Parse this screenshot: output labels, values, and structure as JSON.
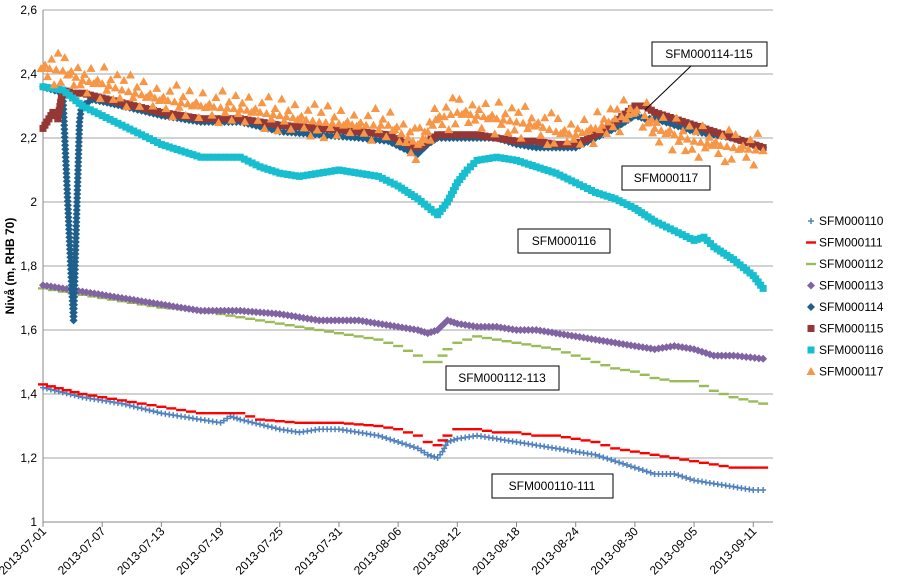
{
  "chart_data": {
    "type": "scatter",
    "title": "",
    "xlabel": "",
    "ylabel": "Nivå (m, RHB 70)",
    "xlim": [
      "2013-07-01",
      "2013-09-13"
    ],
    "ylim": [
      1,
      2.6
    ],
    "x_ticks": [
      "2013-07-01",
      "2013-07-07",
      "2013-07-13",
      "2013-07-19",
      "2013-07-25",
      "2013-07-31",
      "2013-08-06",
      "2013-08-12",
      "2013-08-18",
      "2013-08-24",
      "2013-08-30",
      "2013-09-05",
      "2013-09-11"
    ],
    "y_ticks": [
      "1",
      "1,2",
      "1,4",
      "1,6",
      "1,8",
      "2",
      "2,2",
      "2,4",
      "2,6"
    ],
    "grid": "horizontal",
    "legend_position": "right",
    "series": [
      {
        "name": "SFM000110",
        "color": "#4f81bd",
        "marker": "plus",
        "points": [
          [
            0,
            1.42
          ],
          [
            4,
            1.39
          ],
          [
            8,
            1.37
          ],
          [
            12,
            1.34
          ],
          [
            16,
            1.32
          ],
          [
            18,
            1.31
          ],
          [
            19,
            1.33
          ],
          [
            20,
            1.32
          ],
          [
            24,
            1.29
          ],
          [
            26,
            1.28
          ],
          [
            28,
            1.29
          ],
          [
            30,
            1.29
          ],
          [
            32,
            1.28
          ],
          [
            34,
            1.27
          ],
          [
            36,
            1.25
          ],
          [
            38,
            1.23
          ],
          [
            39,
            1.21
          ],
          [
            40,
            1.2
          ],
          [
            40.5,
            1.22
          ],
          [
            41,
            1.25
          ],
          [
            42,
            1.26
          ],
          [
            44,
            1.27
          ],
          [
            46,
            1.26
          ],
          [
            48,
            1.25
          ],
          [
            50,
            1.24
          ],
          [
            52,
            1.23
          ],
          [
            54,
            1.22
          ],
          [
            56,
            1.21
          ],
          [
            58,
            1.19
          ],
          [
            60,
            1.17
          ],
          [
            62,
            1.15
          ],
          [
            64,
            1.15
          ],
          [
            66,
            1.13
          ],
          [
            68,
            1.12
          ],
          [
            70,
            1.11
          ],
          [
            72,
            1.1
          ],
          [
            73,
            1.1
          ]
        ]
      },
      {
        "name": "SFM000111",
        "color": "#ff0000",
        "marker": "dash",
        "points": [
          [
            0,
            1.43
          ],
          [
            4,
            1.4
          ],
          [
            8,
            1.38
          ],
          [
            12,
            1.36
          ],
          [
            16,
            1.34
          ],
          [
            20,
            1.34
          ],
          [
            22,
            1.32
          ],
          [
            26,
            1.31
          ],
          [
            30,
            1.31
          ],
          [
            34,
            1.3
          ],
          [
            36,
            1.29
          ],
          [
            38,
            1.27
          ],
          [
            39,
            1.25
          ],
          [
            40,
            1.24
          ],
          [
            41,
            1.27
          ],
          [
            42,
            1.29
          ],
          [
            44,
            1.29
          ],
          [
            46,
            1.28
          ],
          [
            48,
            1.28
          ],
          [
            50,
            1.27
          ],
          [
            52,
            1.27
          ],
          [
            54,
            1.26
          ],
          [
            56,
            1.25
          ],
          [
            58,
            1.23
          ],
          [
            60,
            1.22
          ],
          [
            62,
            1.21
          ],
          [
            64,
            1.2
          ],
          [
            66,
            1.19
          ],
          [
            68,
            1.18
          ],
          [
            70,
            1.17
          ],
          [
            73,
            1.17
          ]
        ]
      },
      {
        "name": "SFM000112",
        "color": "#9bbb59",
        "marker": "dash",
        "points": [
          [
            0,
            1.73
          ],
          [
            4,
            1.71
          ],
          [
            8,
            1.69
          ],
          [
            12,
            1.67
          ],
          [
            16,
            1.66
          ],
          [
            20,
            1.64
          ],
          [
            24,
            1.62
          ],
          [
            28,
            1.6
          ],
          [
            32,
            1.58
          ],
          [
            34,
            1.57
          ],
          [
            36,
            1.55
          ],
          [
            38,
            1.52
          ],
          [
            39,
            1.5
          ],
          [
            40,
            1.5
          ],
          [
            41,
            1.54
          ],
          [
            42,
            1.56
          ],
          [
            44,
            1.58
          ],
          [
            46,
            1.57
          ],
          [
            48,
            1.56
          ],
          [
            50,
            1.55
          ],
          [
            52,
            1.54
          ],
          [
            54,
            1.52
          ],
          [
            56,
            1.5
          ],
          [
            58,
            1.48
          ],
          [
            60,
            1.47
          ],
          [
            62,
            1.45
          ],
          [
            64,
            1.44
          ],
          [
            66,
            1.44
          ],
          [
            68,
            1.41
          ],
          [
            70,
            1.39
          ],
          [
            73,
            1.37
          ]
        ]
      },
      {
        "name": "SFM000113",
        "color": "#8064a2",
        "marker": "diamond",
        "points": [
          [
            0,
            1.74
          ],
          [
            4,
            1.72
          ],
          [
            8,
            1.7
          ],
          [
            12,
            1.68
          ],
          [
            16,
            1.66
          ],
          [
            20,
            1.66
          ],
          [
            24,
            1.65
          ],
          [
            28,
            1.63
          ],
          [
            32,
            1.63
          ],
          [
            34,
            1.62
          ],
          [
            36,
            1.61
          ],
          [
            38,
            1.6
          ],
          [
            39,
            1.59
          ],
          [
            40,
            1.6
          ],
          [
            41,
            1.63
          ],
          [
            42,
            1.62
          ],
          [
            44,
            1.61
          ],
          [
            46,
            1.61
          ],
          [
            48,
            1.6
          ],
          [
            50,
            1.6
          ],
          [
            52,
            1.59
          ],
          [
            54,
            1.58
          ],
          [
            56,
            1.57
          ],
          [
            58,
            1.56
          ],
          [
            60,
            1.55
          ],
          [
            62,
            1.54
          ],
          [
            64,
            1.55
          ],
          [
            66,
            1.54
          ],
          [
            68,
            1.52
          ],
          [
            70,
            1.52
          ],
          [
            73,
            1.51
          ]
        ]
      },
      {
        "name": "SFM000114",
        "color": "#1f5f8b",
        "marker": "diamond",
        "points": [
          [
            0,
            2.36
          ],
          [
            2,
            2.34
          ],
          [
            2.9,
            1.74
          ],
          [
            3.1,
            1.63
          ],
          [
            3.3,
            1.85
          ],
          [
            3.5,
            2.05
          ],
          [
            3.7,
            2.25
          ],
          [
            3.9,
            2.3
          ],
          [
            5,
            2.32
          ],
          [
            8,
            2.3
          ],
          [
            12,
            2.27
          ],
          [
            16,
            2.25
          ],
          [
            20,
            2.25
          ],
          [
            24,
            2.22
          ],
          [
            28,
            2.21
          ],
          [
            32,
            2.2
          ],
          [
            35,
            2.19
          ],
          [
            37,
            2.16
          ],
          [
            38,
            2.15
          ],
          [
            39,
            2.18
          ],
          [
            40,
            2.2
          ],
          [
            42,
            2.2
          ],
          [
            44,
            2.2
          ],
          [
            46,
            2.2
          ],
          [
            48,
            2.18
          ],
          [
            50,
            2.17
          ],
          [
            52,
            2.17
          ],
          [
            54,
            2.17
          ],
          [
            56,
            2.2
          ],
          [
            58,
            2.23
          ],
          [
            60,
            2.27
          ],
          [
            61,
            2.26
          ],
          [
            62,
            2.26
          ],
          [
            64,
            2.24
          ],
          [
            66,
            2.22
          ],
          [
            68,
            2.21
          ],
          [
            70,
            2.2
          ],
          [
            73,
            2.17
          ]
        ]
      },
      {
        "name": "SFM000115",
        "color": "#953735",
        "marker": "square",
        "points": [
          [
            0,
            2.23
          ],
          [
            1,
            2.28
          ],
          [
            1.5,
            2.26
          ],
          [
            2,
            2.35
          ],
          [
            3,
            2.34
          ],
          [
            4,
            2.34
          ],
          [
            8,
            2.31
          ],
          [
            12,
            2.28
          ],
          [
            16,
            2.26
          ],
          [
            20,
            2.26
          ],
          [
            24,
            2.24
          ],
          [
            28,
            2.23
          ],
          [
            32,
            2.22
          ],
          [
            35,
            2.21
          ],
          [
            37,
            2.18
          ],
          [
            38,
            2.17
          ],
          [
            39,
            2.19
          ],
          [
            40,
            2.21
          ],
          [
            42,
            2.21
          ],
          [
            44,
            2.21
          ],
          [
            46,
            2.2
          ],
          [
            48,
            2.19
          ],
          [
            50,
            2.19
          ],
          [
            52,
            2.18
          ],
          [
            54,
            2.18
          ],
          [
            56,
            2.21
          ],
          [
            58,
            2.25
          ],
          [
            60,
            2.3
          ],
          [
            61,
            2.3
          ],
          [
            62,
            2.28
          ],
          [
            64,
            2.26
          ],
          [
            66,
            2.24
          ],
          [
            68,
            2.22
          ],
          [
            70,
            2.2
          ],
          [
            73,
            2.17
          ]
        ]
      },
      {
        "name": "SFM000116",
        "color": "#17becf",
        "marker": "square",
        "points": [
          [
            0,
            2.36
          ],
          [
            2,
            2.35
          ],
          [
            4,
            2.3
          ],
          [
            6,
            2.27
          ],
          [
            8,
            2.24
          ],
          [
            10,
            2.21
          ],
          [
            12,
            2.18
          ],
          [
            14,
            2.16
          ],
          [
            16,
            2.14
          ],
          [
            18,
            2.14
          ],
          [
            20,
            2.14
          ],
          [
            22,
            2.11
          ],
          [
            24,
            2.09
          ],
          [
            26,
            2.08
          ],
          [
            28,
            2.09
          ],
          [
            30,
            2.1
          ],
          [
            32,
            2.09
          ],
          [
            34,
            2.08
          ],
          [
            36,
            2.05
          ],
          [
            38,
            2.01
          ],
          [
            40,
            1.96
          ],
          [
            41,
            2.0
          ],
          [
            42,
            2.06
          ],
          [
            43,
            2.1
          ],
          [
            44,
            2.13
          ],
          [
            46,
            2.14
          ],
          [
            48,
            2.13
          ],
          [
            50,
            2.11
          ],
          [
            52,
            2.09
          ],
          [
            54,
            2.06
          ],
          [
            56,
            2.03
          ],
          [
            58,
            2.01
          ],
          [
            60,
            1.98
          ],
          [
            62,
            1.94
          ],
          [
            64,
            1.91
          ],
          [
            66,
            1.88
          ],
          [
            67,
            1.89
          ],
          [
            68,
            1.86
          ],
          [
            70,
            1.82
          ],
          [
            72,
            1.77
          ],
          [
            73,
            1.73
          ]
        ]
      },
      {
        "name": "SFM000117",
        "color": "#f79646",
        "marker": "triangle",
        "points": [
          [
            0,
            2.42
          ],
          [
            2,
            2.41
          ],
          [
            4,
            2.38
          ],
          [
            6,
            2.37
          ],
          [
            8,
            2.35
          ],
          [
            12,
            2.32
          ],
          [
            16,
            2.3
          ],
          [
            20,
            2.29
          ],
          [
            24,
            2.27
          ],
          [
            28,
            2.25
          ],
          [
            32,
            2.24
          ],
          [
            35,
            2.24
          ],
          [
            37,
            2.2
          ],
          [
            38,
            2.18
          ],
          [
            39,
            2.22
          ],
          [
            40,
            2.26
          ],
          [
            42,
            2.28
          ],
          [
            44,
            2.27
          ],
          [
            46,
            2.26
          ],
          [
            48,
            2.25
          ],
          [
            50,
            2.24
          ],
          [
            52,
            2.22
          ],
          [
            54,
            2.21
          ],
          [
            56,
            2.23
          ],
          [
            58,
            2.26
          ],
          [
            60,
            2.28
          ],
          [
            61,
            2.27
          ],
          [
            62,
            2.23
          ],
          [
            64,
            2.21
          ],
          [
            66,
            2.19
          ],
          [
            68,
            2.18
          ],
          [
            70,
            2.17
          ],
          [
            73,
            2.16
          ]
        ]
      }
    ],
    "annotations": [
      {
        "text": "SFM000114-115",
        "target_day": 60.5,
        "target_value": 2.29
      },
      {
        "text": "SFM000117"
      },
      {
        "text": "SFM000116"
      },
      {
        "text": "SFM000112-113"
      },
      {
        "text": "SFM000110-111"
      }
    ]
  }
}
